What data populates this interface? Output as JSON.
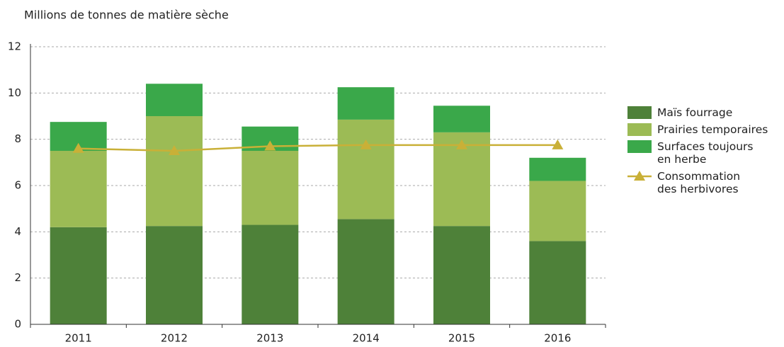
{
  "chart_data": {
    "type": "bar",
    "stacked": true,
    "title": "Millions de tonnes de matière sèche",
    "categories": [
      "2011",
      "2012",
      "2013",
      "2014",
      "2015",
      "2016"
    ],
    "series": [
      {
        "name": "Maïs fourrage",
        "color": "#4e8139",
        "values": [
          4.2,
          4.25,
          4.3,
          4.55,
          4.25,
          3.6
        ]
      },
      {
        "name": "Prairies temporaires",
        "color": "#9cbb55",
        "values": [
          3.3,
          4.75,
          3.2,
          4.3,
          4.05,
          2.6
        ]
      },
      {
        "name": "Surfaces toujours en herbe",
        "color": "#3aa84a",
        "values": [
          1.25,
          1.4,
          1.05,
          1.4,
          1.15,
          1.0
        ]
      },
      {
        "name": "Consommation des herbivores",
        "color": "#c9b037",
        "type": "line",
        "values": [
          7.6,
          7.5,
          7.7,
          7.75,
          7.75,
          7.75
        ]
      }
    ],
    "ylim": [
      0,
      12
    ],
    "yticks": [
      0,
      2,
      4,
      6,
      8,
      10,
      12
    ],
    "grid": true
  }
}
